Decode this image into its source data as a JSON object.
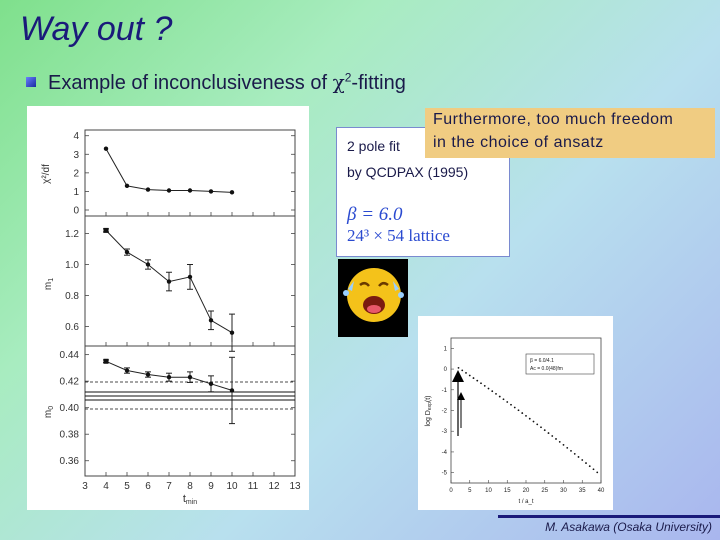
{
  "title": "Way out ?",
  "bullet": {
    "pre": "Example of inconclusiveness of ",
    "chi": "χ",
    "sup": "2",
    "post": "-fitting"
  },
  "left_plot": {
    "xlabel": "t",
    "xlabel_sub": "min",
    "x_ticks": [
      "3",
      "4",
      "5",
      "6",
      "7",
      "8",
      "9",
      "10",
      "11",
      "12",
      "13"
    ],
    "panel_chi": {
      "ylabel": "χ²/df",
      "y_ticks": [
        "4",
        "3",
        "2",
        "1",
        "0"
      ],
      "points": [
        {
          "x": 4,
          "y": 3.3
        },
        {
          "x": 5,
          "y": 1.3
        },
        {
          "x": 6,
          "y": 1.1
        },
        {
          "x": 7,
          "y": 1.05
        },
        {
          "x": 8,
          "y": 1.05
        },
        {
          "x": 9,
          "y": 1.0
        },
        {
          "x": 10,
          "y": 0.95
        }
      ]
    },
    "panel_m1": {
      "ylabel": "m",
      "ylabel_sub": "1",
      "y_ticks": [
        "1.2",
        "1.0",
        "0.8",
        "0.6"
      ],
      "points": [
        {
          "x": 4,
          "y": 1.22,
          "e": 0.01
        },
        {
          "x": 5,
          "y": 1.08,
          "e": 0.02
        },
        {
          "x": 6,
          "y": 1.0,
          "e": 0.03
        },
        {
          "x": 7,
          "y": 0.89,
          "e": 0.06
        },
        {
          "x": 8,
          "y": 0.92,
          "e": 0.08
        },
        {
          "x": 9,
          "y": 0.64,
          "e": 0.06
        },
        {
          "x": 10,
          "y": 0.56,
          "e": 0.12
        }
      ]
    },
    "panel_m0": {
      "ylabel": "m",
      "ylabel_sub": "0",
      "y_ticks": [
        "0.44",
        "0.42",
        "0.40",
        "0.38",
        "0.36"
      ],
      "points": [
        {
          "x": 4,
          "y": 0.435,
          "e": 0.001
        },
        {
          "x": 5,
          "y": 0.428,
          "e": 0.002
        },
        {
          "x": 6,
          "y": 0.425,
          "e": 0.002
        },
        {
          "x": 7,
          "y": 0.423,
          "e": 0.003
        },
        {
          "x": 8,
          "y": 0.423,
          "e": 0.004
        },
        {
          "x": 9,
          "y": 0.418,
          "e": 0.006
        },
        {
          "x": 10,
          "y": 0.413,
          "e": 0.025
        }
      ]
    }
  },
  "annotation": {
    "line1": "2 pole fit",
    "line2": "by QCDPAX (1995)",
    "beta": "β = 6.0",
    "lattice": "24³ × 54 lattice"
  },
  "callout": {
    "line1": "Furthermore, too much freedom",
    "line2": "in the choice of ansatz"
  },
  "right_plot": {
    "ylabel": "log D",
    "ylabel_sub": "exp",
    "ylabel_tail": "(t)",
    "xlabel": "t / a_t",
    "y_ticks": [
      "1",
      "0",
      "-1",
      "-2",
      "-3",
      "-4",
      "-5"
    ],
    "x_ticks": [
      "0",
      "5",
      "10",
      "15",
      "20",
      "25",
      "30",
      "35",
      "40"
    ],
    "legend_line1": "β = 6.0/4.1",
    "legend_line2": "Ac = 0.0(48)fm"
  },
  "footer": "M. Asakawa (Osaka University)"
}
